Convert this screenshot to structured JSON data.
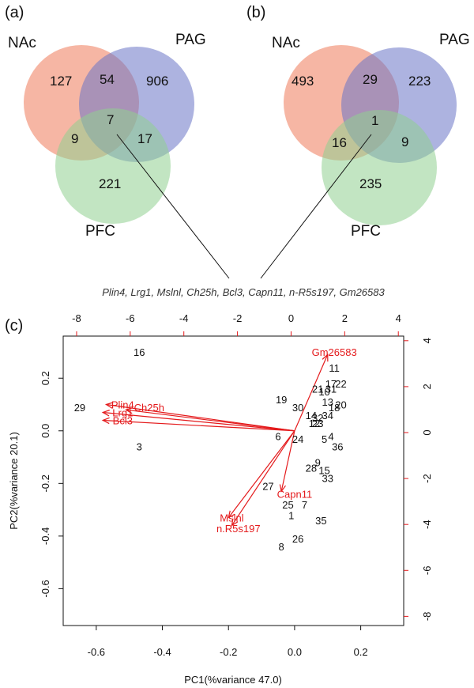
{
  "panels": {
    "a": "(a)",
    "b": "(b)",
    "c": "(c)"
  },
  "venn": [
    {
      "id": "a",
      "sets": [
        "NAc",
        "PAG",
        "PFC"
      ],
      "counts": {
        "nac_only": "127",
        "pag_only": "906",
        "pfc_only": "221",
        "nac_pag": "54",
        "nac_pfc": "9",
        "pag_pfc": "17",
        "all": "7"
      }
    },
    {
      "id": "b",
      "sets": [
        "NAc",
        "PAG",
        "PFC"
      ],
      "counts": {
        "nac_only": "493",
        "pag_only": "223",
        "pfc_only": "235",
        "nac_pag": "29",
        "nac_pfc": "16",
        "pag_pfc": "9",
        "all": "1"
      }
    }
  ],
  "venn_colors": {
    "nac": "#ee7a5a",
    "pag": "#6a74c6",
    "pfc": "#8fcf8f"
  },
  "gene_list": "Plin4, Lrg1, Mslnl, Ch25h, Bcl3, Capn11, n-R5s197, Gm26583",
  "chart_data": {
    "type": "scatter",
    "xlabel": "PC1(%variance 47.0)",
    "ylabel": "PC2(%variance 20.1)",
    "xlim": [
      -0.7,
      0.33
    ],
    "ylim": [
      -0.74,
      0.36
    ],
    "xticks": [
      "-0.6",
      "-0.4",
      "-0.2",
      "0.0",
      "0.2"
    ],
    "yticks": [
      "-0.6",
      "-0.4",
      "-0.2",
      "0.0",
      "0.2"
    ],
    "secondary_xlim": [
      -8.5,
      4.2
    ],
    "secondary_ylim": [
      -8.4,
      4.2
    ],
    "secondary_xticks": [
      "-8",
      "-6",
      "-4",
      "-2",
      "0",
      "2",
      "4"
    ],
    "secondary_yticks": [
      "-8",
      "-6",
      "-4",
      "-2",
      "0",
      "2",
      "4"
    ],
    "arrow_color": "#e41a1c",
    "points": [
      {
        "label": "16",
        "x": -0.47,
        "y": 0.3
      },
      {
        "label": "29",
        "x": -0.65,
        "y": 0.09
      },
      {
        "label": "3",
        "x": -0.47,
        "y": -0.06
      },
      {
        "label": "19",
        "x": -0.04,
        "y": 0.12
      },
      {
        "label": "30",
        "x": 0.01,
        "y": 0.09
      },
      {
        "label": "6",
        "x": -0.05,
        "y": -0.02
      },
      {
        "label": "24",
        "x": 0.01,
        "y": -0.03
      },
      {
        "label": "11",
        "x": 0.12,
        "y": 0.24
      },
      {
        "label": "21",
        "x": 0.07,
        "y": 0.16
      },
      {
        "label": "17",
        "x": 0.11,
        "y": 0.18
      },
      {
        "label": "22",
        "x": 0.14,
        "y": 0.18
      },
      {
        "label": "31",
        "x": 0.11,
        "y": 0.16
      },
      {
        "label": "10",
        "x": 0.09,
        "y": 0.15
      },
      {
        "label": "13",
        "x": 0.1,
        "y": 0.11
      },
      {
        "label": "20",
        "x": 0.14,
        "y": 0.1
      },
      {
        "label": "18",
        "x": 0.12,
        "y": 0.09
      },
      {
        "label": "14",
        "x": 0.05,
        "y": 0.06
      },
      {
        "label": "32",
        "x": 0.07,
        "y": 0.05
      },
      {
        "label": "34",
        "x": 0.1,
        "y": 0.06
      },
      {
        "label": "12",
        "x": 0.06,
        "y": 0.03
      },
      {
        "label": "23",
        "x": 0.07,
        "y": 0.03
      },
      {
        "label": "5",
        "x": 0.09,
        "y": -0.03
      },
      {
        "label": "4",
        "x": 0.11,
        "y": -0.02
      },
      {
        "label": "36",
        "x": 0.13,
        "y": -0.06
      },
      {
        "label": "9",
        "x": 0.07,
        "y": -0.12
      },
      {
        "label": "28",
        "x": 0.05,
        "y": -0.14
      },
      {
        "label": "15",
        "x": 0.09,
        "y": -0.15
      },
      {
        "label": "33",
        "x": 0.1,
        "y": -0.18
      },
      {
        "label": "27",
        "x": -0.08,
        "y": -0.21
      },
      {
        "label": "25",
        "x": -0.02,
        "y": -0.28
      },
      {
        "label": "7",
        "x": 0.03,
        "y": -0.28
      },
      {
        "label": "1",
        "x": -0.01,
        "y": -0.32
      },
      {
        "label": "35",
        "x": 0.08,
        "y": -0.34
      },
      {
        "label": "26",
        "x": 0.01,
        "y": -0.41
      },
      {
        "label": "8",
        "x": -0.04,
        "y": -0.44
      }
    ],
    "loadings": [
      {
        "label": "Gm26583",
        "x": 0.1,
        "y": 0.29
      },
      {
        "label": "Plin4",
        "x": -0.57,
        "y": 0.1
      },
      {
        "label": "Ch25h",
        "x": -0.51,
        "y": 0.08
      },
      {
        "label": "Lrg1",
        "x": -0.58,
        "y": 0.07
      },
      {
        "label": "Bcl3",
        "x": -0.58,
        "y": 0.04
      },
      {
        "label": "Capn11",
        "x": -0.04,
        "y": -0.23
      },
      {
        "label": "Mslnl",
        "x": -0.2,
        "y": -0.33
      },
      {
        "label": "n.R5s197",
        "x": -0.19,
        "y": -0.36
      }
    ],
    "loading_labels": [
      {
        "label": "Gm26583",
        "x": 0.12,
        "y": 0.3
      },
      {
        "label": "Plin4",
        "x": -0.52,
        "y": 0.1
      },
      {
        "label": "Ch25h",
        "x": -0.44,
        "y": 0.09
      },
      {
        "label": "Lrg1",
        "x": -0.52,
        "y": 0.07
      },
      {
        "label": "Bcl3",
        "x": -0.52,
        "y": 0.04
      },
      {
        "label": "Capn11",
        "x": 0.0,
        "y": -0.24
      },
      {
        "label": "Mslnl",
        "x": -0.19,
        "y": -0.33
      },
      {
        "label": "n.R5s197",
        "x": -0.17,
        "y": -0.37
      }
    ]
  }
}
